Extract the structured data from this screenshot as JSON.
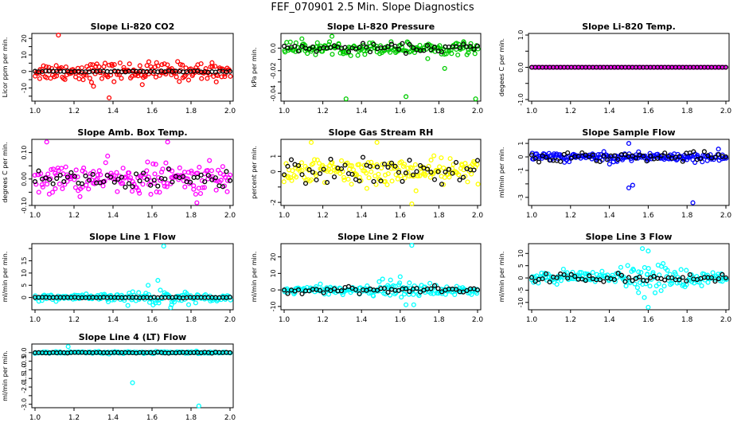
{
  "figure": {
    "title": "FEF_070901  2.5 Min. Slope Diagnostics"
  },
  "point_colors": {
    "ref": "#000000"
  },
  "chart_data": [
    {
      "type": "scatter",
      "title": "Slope Li-820 CO2",
      "ylabel": "Licor ppm per min.",
      "color": "#ff0000",
      "xlim": [
        1.0,
        2.0
      ],
      "ylim": [
        -18,
        23
      ],
      "xticks": [
        1.0,
        1.2,
        1.4,
        1.6,
        1.8,
        2.0
      ],
      "yticks": [
        -15,
        -10,
        -5,
        0,
        5,
        10,
        15,
        20
      ],
      "ytick_labels": [
        "",
        "-10",
        "",
        "0",
        "",
        "10",
        "",
        "20"
      ],
      "primary_spread": 5,
      "ref_spread": 0.4,
      "outliers": [
        [
          1.12,
          22
        ],
        [
          1.38,
          -16
        ],
        [
          1.3,
          -9
        ],
        [
          1.55,
          -8
        ]
      ]
    },
    {
      "type": "scatter",
      "title": "Slope Li-820 Pressure",
      "ylabel": "kPa per min.",
      "color": "#00cc00",
      "xlim": [
        1.0,
        2.0
      ],
      "ylim": [
        -0.047,
        0.013
      ],
      "xticks": [
        1.0,
        1.2,
        1.4,
        1.6,
        1.8,
        2.0
      ],
      "yticks": [
        -0.04,
        -0.03,
        -0.02,
        -0.01,
        0.0
      ],
      "ytick_labels": [
        "-0.04",
        "",
        "-0.02",
        "",
        "0.0"
      ],
      "primary_spread": 0.005,
      "ref_spread": 0.003,
      "outliers": [
        [
          1.32,
          -0.045
        ],
        [
          1.63,
          -0.043
        ],
        [
          1.99,
          -0.045
        ],
        [
          1.83,
          -0.018
        ]
      ]
    },
    {
      "type": "scatter",
      "title": "Slope Li-820 Temp.",
      "ylabel": "degees C per min.",
      "color": "#ff00ff",
      "xlim": [
        1.0,
        2.0
      ],
      "ylim": [
        -1.05,
        1.05
      ],
      "xticks": [
        1.0,
        1.2,
        1.4,
        1.6,
        1.8,
        2.0
      ],
      "yticks": [
        -1.0,
        -0.5,
        0.0,
        0.5,
        1.0
      ],
      "ytick_labels": [
        "-1.0",
        "",
        "0.0",
        "",
        "1.0"
      ],
      "primary_spread": 0,
      "ref_spread": 0,
      "outliers": []
    },
    {
      "type": "scatter",
      "title": "Slope Amb. Box Temp.",
      "ylabel": "degrees C per min.",
      "color": "#ff00ff",
      "xlim": [
        1.0,
        2.0
      ],
      "ylim": [
        -0.1,
        0.15
      ],
      "xticks": [
        1.0,
        1.2,
        1.4,
        1.6,
        1.8,
        2.0
      ],
      "yticks": [
        -0.1,
        -0.05,
        0.0,
        0.05,
        0.1
      ],
      "ytick_labels": [
        "-0.10",
        "",
        "0.00",
        "",
        "0.10"
      ],
      "primary_spread": 0.05,
      "ref_spread": 0.03,
      "outliers": [
        [
          1.06,
          0.14
        ],
        [
          1.68,
          0.14
        ],
        [
          1.83,
          -0.09
        ]
      ]
    },
    {
      "type": "scatter",
      "title": "Slope Gas Stream RH",
      "ylabel": "percent per min.",
      "color": "#ffff00",
      "xlim": [
        1.0,
        2.0
      ],
      "ylim": [
        -2.2,
        2.1
      ],
      "xticks": [
        1.0,
        1.2,
        1.4,
        1.6,
        1.8,
        2.0
      ],
      "yticks": [
        -2,
        -1,
        0,
        1
      ],
      "ytick_labels": [
        "-2",
        "",
        "0",
        "1"
      ],
      "primary_spread": 0.8,
      "ref_spread": 0.7,
      "outliers": [
        [
          1.66,
          -2.1
        ],
        [
          1.48,
          1.9
        ],
        [
          1.14,
          1.9
        ]
      ]
    },
    {
      "type": "scatter",
      "title": "Slope Sample Flow",
      "ylabel": "ml/min per min.",
      "color": "#0000ff",
      "xlim": [
        1.0,
        2.0
      ],
      "ylim": [
        -3.6,
        1.3
      ],
      "xticks": [
        1.0,
        1.2,
        1.4,
        1.6,
        1.8,
        2.0
      ],
      "yticks": [
        -3,
        -2,
        -1,
        0,
        1
      ],
      "ytick_labels": [
        "-3",
        "",
        "-1",
        "0",
        "1"
      ],
      "primary_spread": 0.3,
      "ref_spread": 0.3,
      "outliers": [
        [
          1.52,
          -2.1
        ],
        [
          1.5,
          -2.3
        ],
        [
          1.83,
          -3.4
        ],
        [
          1.5,
          1.0
        ]
      ]
    },
    {
      "type": "scatter",
      "title": "Slope Line 1 Flow",
      "ylabel": "ml/min per min.",
      "color": "#00ffff",
      "xlim": [
        1.0,
        2.0
      ],
      "ylim": [
        -5,
        22
      ],
      "xticks": [
        1.0,
        1.2,
        1.4,
        1.6,
        1.8,
        2.0
      ],
      "yticks": [
        0,
        5,
        10,
        15,
        20
      ],
      "ytick_labels": [
        "0",
        "5",
        "10",
        "15",
        ""
      ],
      "primary_spread": 1.2,
      "ref_spread": 0.1,
      "outliers": [
        [
          1.66,
          21
        ],
        [
          1.63,
          7
        ],
        [
          1.7,
          -3
        ],
        [
          1.58,
          5
        ]
      ]
    },
    {
      "type": "scatter",
      "title": "Slope Line 2 Flow",
      "ylabel": "ml/min per min.",
      "color": "#00ffff",
      "xlim": [
        1.0,
        2.0
      ],
      "ylim": [
        -12,
        28
      ],
      "xticks": [
        1.0,
        1.2,
        1.4,
        1.6,
        1.8,
        2.0
      ],
      "yticks": [
        -10,
        0,
        10,
        20
      ],
      "ytick_labels": [
        "-10",
        "0",
        "10",
        "20"
      ],
      "primary_spread": 2,
      "ref_spread": 1.5,
      "outliers": [
        [
          1.66,
          27
        ],
        [
          1.63,
          -9
        ],
        [
          1.67,
          -9
        ],
        [
          1.55,
          6
        ],
        [
          1.6,
          8
        ]
      ]
    },
    {
      "type": "scatter",
      "title": "Slope Line 3 Flow",
      "ylabel": "ml/min per min.",
      "color": "#00ffff",
      "xlim": [
        1.0,
        2.0
      ],
      "ylim": [
        -13,
        14
      ],
      "xticks": [
        1.0,
        1.2,
        1.4,
        1.6,
        1.8,
        2.0
      ],
      "yticks": [
        -10,
        -5,
        0,
        5,
        10
      ],
      "ytick_labels": [
        "-10",
        "-5",
        "0",
        "5",
        "10"
      ],
      "primary_spread": 2.2,
      "ref_spread": 1.5,
      "outliers": [
        [
          1.6,
          -12
        ],
        [
          1.58,
          -8
        ],
        [
          1.57,
          12
        ],
        [
          1.6,
          11
        ],
        [
          1.55,
          -6
        ]
      ]
    },
    {
      "type": "scatter",
      "title": "Slope Line 4 (LT) Flow",
      "ylabel": "ml/min per min.",
      "color": "#00ffff",
      "xlim": [
        1.0,
        2.0
      ],
      "ylim": [
        -3.2,
        0.5
      ],
      "xticks": [
        1.0,
        1.2,
        1.4,
        1.6,
        1.8,
        2.0
      ],
      "yticks": [
        -3,
        -2.5,
        -2,
        -1.5,
        -1,
        -0.5,
        0
      ],
      "ytick_labels": [
        "-3.0",
        "",
        "-2.0",
        "-1.5",
        "-1.0",
        "-0.5",
        "0.0"
      ],
      "primary_spread": 0.05,
      "ref_spread": 0.02,
      "outliers": [
        [
          1.17,
          0.35
        ],
        [
          1.5,
          -1.75
        ],
        [
          1.84,
          -3.1
        ]
      ]
    }
  ]
}
